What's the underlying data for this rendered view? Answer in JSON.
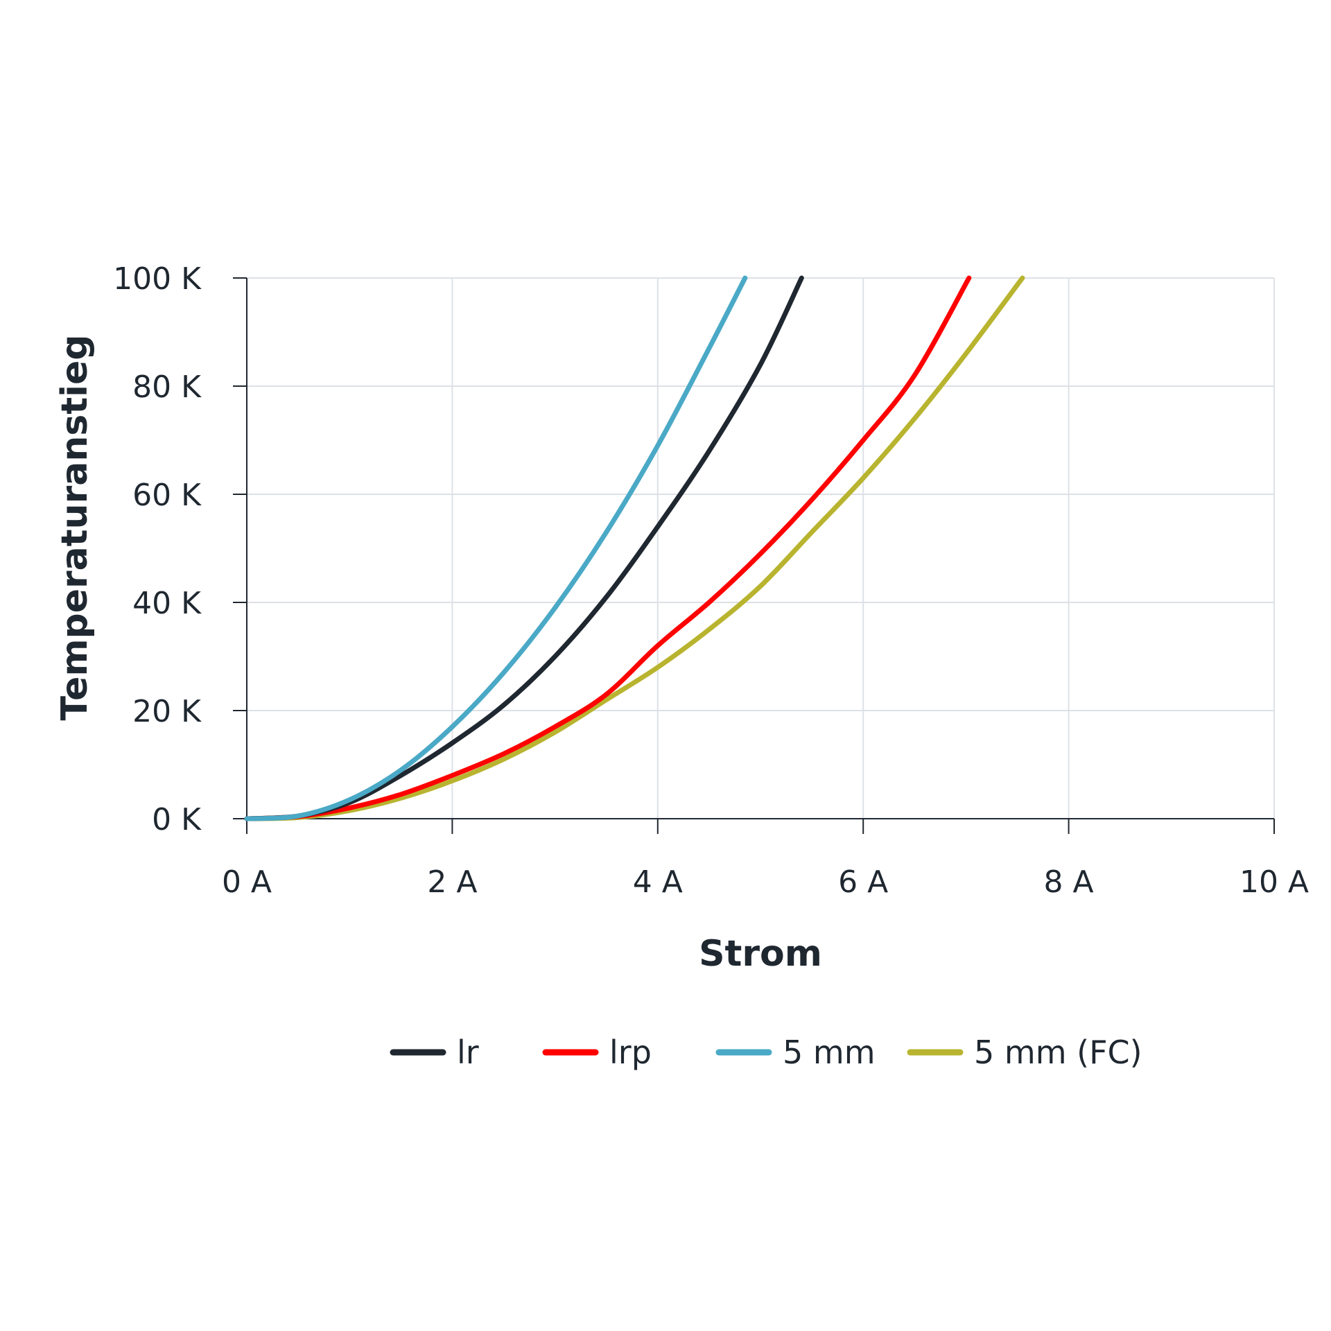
{
  "chart_data": {
    "type": "line",
    "title": "",
    "xlabel": "Strom",
    "ylabel": "Temperaturanstieg",
    "xlim": [
      0,
      10
    ],
    "ylim": [
      0,
      100
    ],
    "x_ticks": [
      0,
      2,
      4,
      6,
      8,
      10
    ],
    "y_ticks": [
      0,
      20,
      40,
      60,
      80,
      100
    ],
    "x_tick_labels": [
      "0 A",
      "2 A",
      "4 A",
      "6 A",
      "8 A",
      "10 A"
    ],
    "y_tick_labels": [
      "0 K",
      "20 K",
      "40 K",
      "60 K",
      "80 K",
      "100 K"
    ],
    "grid": true,
    "legend_position": "bottom",
    "series": [
      {
        "name": "lr",
        "color": "#1f2730",
        "x": [
          0,
          0.5,
          1,
          1.5,
          2,
          2.5,
          3,
          3.5,
          4,
          4.5,
          5,
          5.4
        ],
        "y": [
          0,
          0.5,
          3,
          8,
          14,
          21,
          30,
          41,
          54,
          68,
          84,
          100
        ]
      },
      {
        "name": "lrp",
        "color": "#ff0000",
        "x": [
          0,
          0.5,
          1,
          1.5,
          2,
          2.5,
          3,
          3.5,
          4,
          4.5,
          5,
          5.5,
          6,
          6.5,
          7.03
        ],
        "y": [
          0,
          0.4,
          2,
          4.5,
          8,
          12,
          17,
          23,
          32,
          40,
          49,
          59,
          70,
          82,
          100
        ]
      },
      {
        "name": "5 mm",
        "color": "#4aa9c6",
        "x": [
          0,
          0.5,
          1,
          1.5,
          2,
          2.5,
          3,
          3.5,
          4,
          4.5,
          4.85
        ],
        "y": [
          0,
          0.5,
          3.5,
          9,
          17,
          27,
          39,
          53,
          69,
          87,
          100
        ]
      },
      {
        "name": "5 mm (FC)",
        "color": "#b8b42f",
        "x": [
          0,
          0.5,
          1,
          1.5,
          2,
          2.5,
          3,
          3.5,
          4,
          4.5,
          5,
          5.5,
          6,
          6.5,
          7,
          7.55
        ],
        "y": [
          0,
          0.2,
          1.5,
          3.8,
          7,
          11,
          16,
          22,
          28,
          35,
          43,
          53,
          63,
          74,
          86,
          100
        ]
      }
    ]
  }
}
